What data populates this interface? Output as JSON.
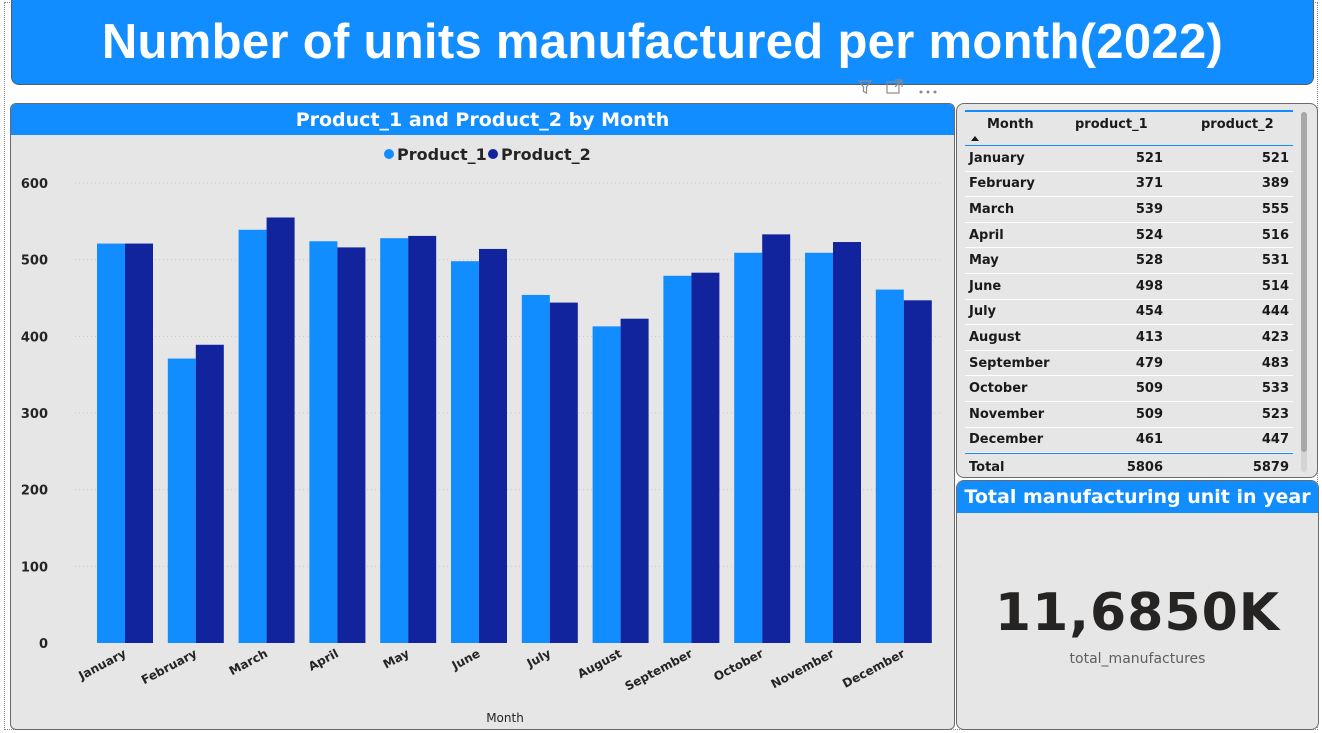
{
  "report": {
    "title": "Number of units manufactured per month(2022)"
  },
  "icons": [
    "filter-icon",
    "focus-mode-icon",
    "more-options-icon"
  ],
  "colors": {
    "accent": "#118DFF",
    "product_1": "#118DFF",
    "product_2": "#12239E",
    "panel_bg": "#E6E6E6"
  },
  "chart": {
    "header": "Product_1 and Product_2 by Month"
  },
  "chart_data": {
    "type": "bar",
    "title": "Product_1 and Product_2 by Month",
    "xlabel": "Month",
    "ylabel": "",
    "ylim": [
      0,
      600
    ],
    "yticks": [
      0,
      100,
      200,
      300,
      400,
      500,
      600
    ],
    "legend_position": "top-center",
    "grid": true,
    "categories": [
      "January",
      "February",
      "March",
      "April",
      "May",
      "June",
      "July",
      "August",
      "September",
      "October",
      "November",
      "December"
    ],
    "series": [
      {
        "name": "Product_1",
        "values": [
          521,
          371,
          539,
          524,
          528,
          498,
          454,
          413,
          479,
          509,
          509,
          461
        ]
      },
      {
        "name": "Product_2",
        "values": [
          521,
          389,
          555,
          516,
          531,
          514,
          444,
          423,
          483,
          533,
          523,
          447
        ]
      }
    ]
  },
  "table": {
    "columns": [
      "Month",
      "product_1",
      "product_2"
    ],
    "rows": [
      {
        "month": "January",
        "p1": "521",
        "p2": "521"
      },
      {
        "month": "February",
        "p1": "371",
        "p2": "389"
      },
      {
        "month": "March",
        "p1": "539",
        "p2": "555"
      },
      {
        "month": "April",
        "p1": "524",
        "p2": "516"
      },
      {
        "month": "May",
        "p1": "528",
        "p2": "531"
      },
      {
        "month": "June",
        "p1": "498",
        "p2": "514"
      },
      {
        "month": "July",
        "p1": "454",
        "p2": "444"
      },
      {
        "month": "August",
        "p1": "413",
        "p2": "423"
      },
      {
        "month": "September",
        "p1": "479",
        "p2": "483"
      },
      {
        "month": "October",
        "p1": "509",
        "p2": "533"
      },
      {
        "month": "November",
        "p1": "509",
        "p2": "523"
      },
      {
        "month": "December",
        "p1": "461",
        "p2": "447"
      }
    ],
    "total": {
      "label": "Total",
      "p1": "5806",
      "p2": "5879"
    }
  },
  "card": {
    "header": "Total manufacturing unit in year",
    "value": "11,6850K",
    "label": "total_manufactures"
  }
}
